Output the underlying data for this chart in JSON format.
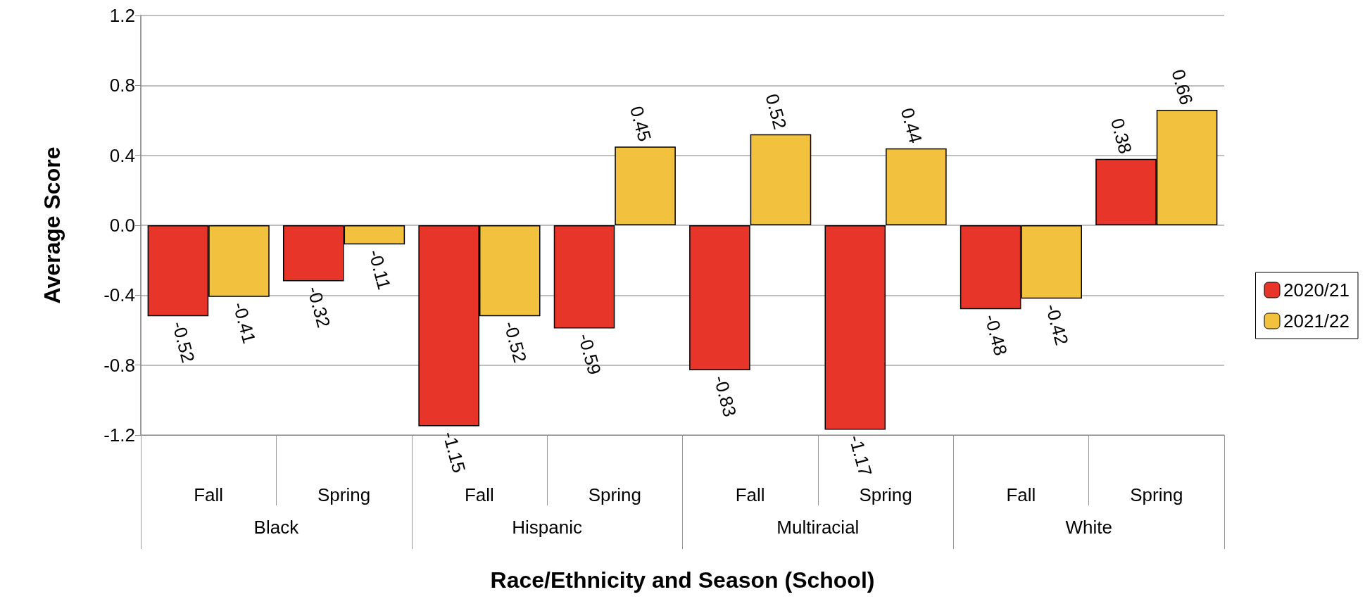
{
  "chart_data": {
    "type": "bar",
    "xlabel": "Race/Ethnicity and Season (School)",
    "ylabel": "Average Score",
    "categories": [
      "Fall",
      "Spring",
      "Fall",
      "Spring",
      "Fall",
      "Spring",
      "Fall",
      "Spring"
    ],
    "annotations": [
      "Black",
      "Hispanic",
      "Multiracial",
      "White"
    ],
    "series": [
      {
        "name": "2020/21",
        "color": "#e8352a",
        "values": [
          -0.52,
          -0.32,
          -1.15,
          -0.59,
          -0.83,
          -1.17,
          -0.48,
          0.38
        ]
      },
      {
        "name": "2021/22",
        "color": "#f2c13e",
        "values": [
          -0.41,
          -0.11,
          -0.52,
          0.45,
          0.52,
          0.44,
          -0.42,
          0.66
        ]
      }
    ],
    "ylim": [
      -1.2,
      1.2
    ],
    "yticks": [
      -1.2,
      -0.8,
      -0.4,
      {
        "value": 0,
        "label": "0.0"
      },
      0.4,
      0.8,
      1.2
    ],
    "grid": "y",
    "legend": "right",
    "data_labels": true
  }
}
